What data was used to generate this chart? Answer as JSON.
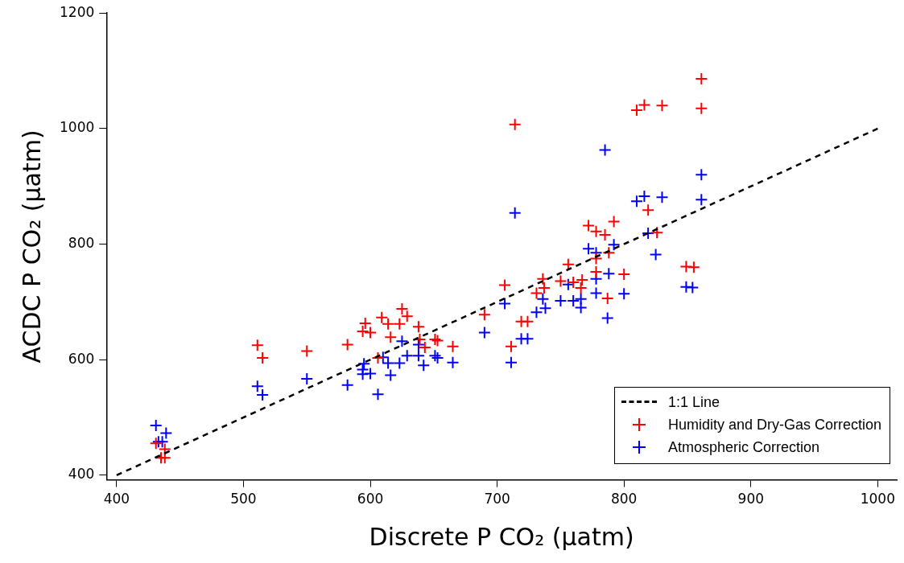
{
  "chart_data": {
    "type": "scatter",
    "xlabel": "Discrete P CO₂ (μatm)",
    "ylabel": "ACDC P CO₂ (μatm)",
    "xlim": [
      392,
      1015
    ],
    "ylim": [
      392,
      1200
    ],
    "xticks": [
      400,
      500,
      600,
      700,
      800,
      900,
      1000
    ],
    "yticks": [
      400,
      600,
      800,
      1000,
      1200
    ],
    "legend": "bottom right",
    "marker": "cross",
    "series": [
      {
        "name": "1:1 Line",
        "type": "line",
        "color": "#000000",
        "line_style": "dashed",
        "marker": "none",
        "x": [
          400,
          1000
        ],
        "values": [
          400,
          1000
        ]
      },
      {
        "name": "Humidity and Dry-Gas Correction",
        "color": "#ff0000",
        "x": [
          431,
          438,
          435,
          438,
          511,
          515,
          550,
          582,
          606,
          596,
          594,
          600,
          609,
          614,
          623,
          625,
          629,
          638,
          616,
          639,
          643,
          651,
          653,
          665,
          690,
          706,
          711,
          719,
          724,
          731,
          736,
          737,
          750,
          756,
          760,
          767,
          766,
          772,
          778,
          785,
          792,
          778,
          788,
          778,
          787,
          800,
          819,
          826,
          849,
          855,
          714,
          861,
          861,
          810,
          816,
          830
        ],
        "values": [
          455,
          445,
          430,
          430,
          625,
          603,
          615,
          626,
          603,
          663,
          649,
          647,
          673,
          662,
          662,
          688,
          675,
          657,
          639,
          635,
          621,
          635,
          633,
          623,
          678,
          729,
          623,
          666,
          666,
          715,
          740,
          724,
          736,
          765,
          734,
          738,
          724,
          832,
          822,
          816,
          839,
          775,
          785,
          752,
          706,
          748,
          859,
          820,
          761,
          760,
          1007,
          1086,
          1035,
          1032,
          1041,
          1040
        ]
      },
      {
        "name": "Atmospheric Correction",
        "color": "#0000ff",
        "x": [
          431,
          439,
          436,
          433,
          511,
          515,
          550,
          582,
          606,
          595,
          594,
          594,
          600,
          610,
          614,
          616,
          623,
          625,
          629,
          638,
          638,
          642,
          651,
          653,
          665,
          690,
          706,
          711,
          719,
          724,
          731,
          736,
          738,
          750,
          756,
          760,
          766,
          766,
          772,
          778,
          778,
          778,
          788,
          792,
          787,
          800,
          810,
          816,
          830,
          819,
          825,
          849,
          854,
          861,
          861,
          714,
          785
        ],
        "values": [
          486,
          473,
          458,
          458,
          554,
          539,
          567,
          556,
          540,
          593,
          583,
          575,
          576,
          604,
          594,
          573,
          594,
          632,
          607,
          626,
          607,
          590,
          607,
          603,
          595,
          647,
          697,
          595,
          636,
          636,
          682,
          705,
          689,
          702,
          730,
          702,
          705,
          690,
          792,
          785,
          740,
          715,
          749,
          799,
          672,
          714,
          874,
          883,
          881,
          819,
          782,
          726,
          725,
          920,
          877,
          854,
          963
        ]
      }
    ]
  }
}
